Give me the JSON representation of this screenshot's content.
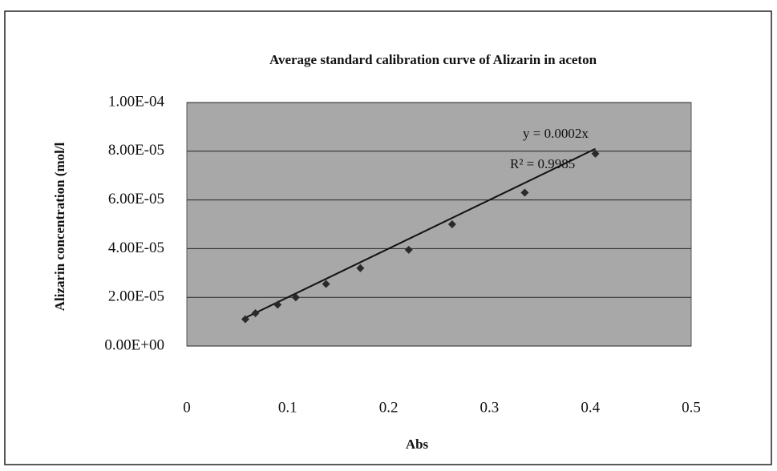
{
  "chart_data": {
    "type": "scatter",
    "title": "Average standard calibration curve of Alizarin in aceton",
    "x_label": "Abs",
    "y_label": "Alizarin concentration  (mol/l",
    "x": [
      0.058,
      0.068,
      0.09,
      0.108,
      0.138,
      0.172,
      0.22,
      0.263,
      0.335,
      0.405
    ],
    "values": [
      1.1e-05,
      1.35e-05,
      1.7e-05,
      2e-05,
      2.55e-05,
      3.2e-05,
      3.95e-05,
      5e-05,
      6.3e-05,
      7.9e-05
    ],
    "color": "#2a2a2a",
    "xlim": [
      0,
      0.5
    ],
    "xticks": [
      0,
      0.1,
      0.2,
      0.3,
      0.4,
      0.5
    ],
    "ylim": [
      0,
      0.0001
    ],
    "yticks": [
      {
        "value": 0,
        "label": "0.00E+00"
      },
      {
        "value": 2e-05,
        "label": "2.00E-05"
      },
      {
        "value": 4e-05,
        "label": "4.00E-05"
      },
      {
        "value": 6e-05,
        "label": "6.00E-05"
      },
      {
        "value": 8e-05,
        "label": "8.00E-05"
      },
      {
        "value": 0.0001,
        "label": "1.00E-04"
      }
    ],
    "grid": true,
    "trendline": {
      "slope": 0.0002,
      "equation": "y = 0.0002x",
      "r2": "R² = 0.9985"
    }
  }
}
